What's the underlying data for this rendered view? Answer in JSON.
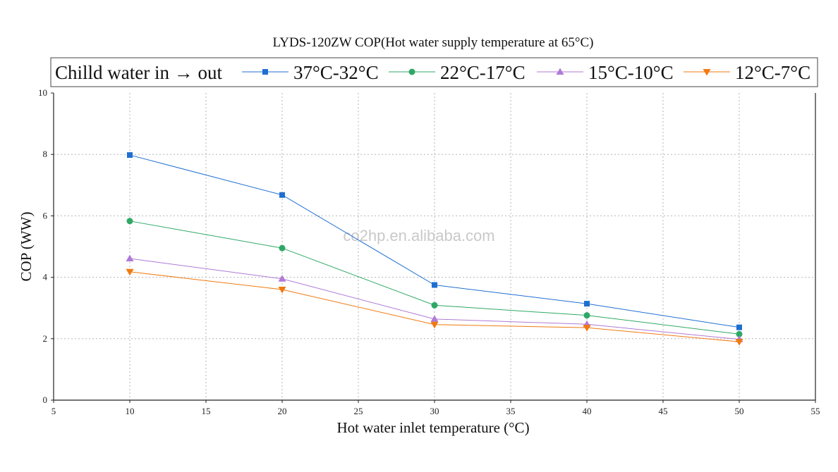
{
  "chart_data": {
    "type": "line",
    "title": "LYDS-120ZW COP(Hot water supply temperature at 65°C)",
    "xlabel": "Hot water inlet temperature (°C)",
    "ylabel": "COP (WW)",
    "xlim": [
      5,
      55
    ],
    "ylim": [
      0,
      10
    ],
    "xticks": [
      5,
      10,
      15,
      20,
      25,
      30,
      35,
      40,
      45,
      50,
      55
    ],
    "yticks": [
      0,
      2,
      4,
      6,
      8,
      10
    ],
    "grid": true,
    "legend_title": "Chilld water in → out",
    "legend_position": "top",
    "x": [
      10,
      20,
      30,
      40,
      50
    ],
    "series": [
      {
        "name": "37°C-32°C",
        "values": [
          7.98,
          6.68,
          3.75,
          3.14,
          2.37
        ],
        "color": "#1f6fd1",
        "marker": "square"
      },
      {
        "name": "22°C-17°C",
        "values": [
          5.83,
          4.95,
          3.09,
          2.76,
          2.15
        ],
        "color": "#2fa866",
        "marker": "circle"
      },
      {
        "name": "15°C-10°C",
        "values": [
          4.61,
          3.95,
          2.64,
          2.47,
          1.98
        ],
        "color": "#b07ad6",
        "marker": "triangle-up"
      },
      {
        "name": "12°C-7°C",
        "values": [
          4.18,
          3.6,
          2.46,
          2.36,
          1.9
        ],
        "color": "#f07a10",
        "marker": "triangle-down"
      }
    ],
    "watermark": "co2hp.en.alibaba.com"
  }
}
